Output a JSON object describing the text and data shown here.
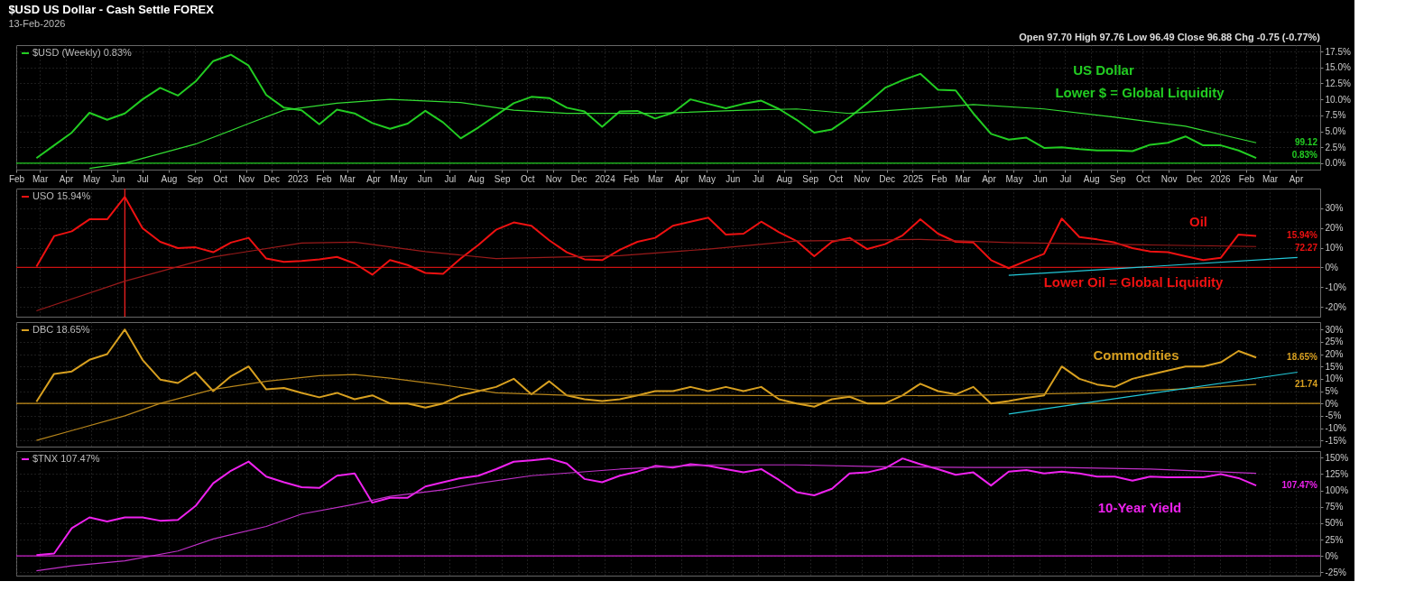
{
  "chart_data": [
    {
      "type": "line",
      "title": "$USD US Dollar - Cash Settle FOREX",
      "subtitle": "13-Feb-2026",
      "annotations": [
        "Open 97.70 High 97.76 Low 96.49 Close 96.88 Chg -0.75 (-0.77%)",
        "US Dollar",
        "Lower $ = Global Liquidity",
        "99.12",
        "0.83%"
      ],
      "x": [
        "2022-02-25",
        "2022-03-18",
        "2022-04-08",
        "2022-04-29",
        "2022-05-20",
        "2022-06-10",
        "2022-07-01",
        "2022-07-22",
        "2022-08-12",
        "2022-09-02",
        "2022-09-23",
        "2022-10-14",
        "2022-11-04",
        "2022-11-25",
        "2022-12-16",
        "2023-01-06",
        "2023-01-27",
        "2023-02-17",
        "2023-03-10",
        "2023-03-31",
        "2023-04-21",
        "2023-05-12",
        "2023-06-02",
        "2023-06-23",
        "2023-07-14",
        "2023-08-04",
        "2023-08-25",
        "2023-09-15",
        "2023-10-06",
        "2023-10-27",
        "2023-11-17",
        "2023-12-08",
        "2023-12-29",
        "2024-01-19",
        "2024-02-09",
        "2024-03-01",
        "2024-03-22",
        "2024-04-12",
        "2024-05-03",
        "2024-05-24",
        "2024-06-14",
        "2024-07-05",
        "2024-07-26",
        "2024-08-16",
        "2024-09-06",
        "2024-09-27",
        "2024-10-18",
        "2024-11-08",
        "2024-11-29",
        "2024-12-20",
        "2025-01-10",
        "2025-01-31",
        "2025-02-21",
        "2025-03-14",
        "2025-04-04",
        "2025-04-25",
        "2025-05-16",
        "2025-06-06",
        "2025-06-27",
        "2025-07-18",
        "2025-08-08",
        "2025-08-29",
        "2025-09-19",
        "2025-10-10",
        "2025-10-31",
        "2025-11-21",
        "2025-12-12",
        "2026-01-02",
        "2026-01-23",
        "2026-02-13"
      ],
      "series": [
        {
          "name": "$USD (Weekly) 0.83%",
          "color": "#22cc22",
          "values": [
            0.8,
            2.8,
            4.8,
            7.9,
            6.8,
            7.8,
            10,
            11.8,
            10.6,
            12.8,
            16,
            17,
            15.3,
            10.7,
            8.7,
            8.3,
            6.1,
            8.4,
            7.8,
            6.3,
            5.4,
            6.2,
            8.2,
            6.4,
            3.9,
            5.6,
            7.5,
            9.4,
            10.4,
            10.2,
            8.7,
            8.1,
            5.7,
            8.1,
            8.2,
            7,
            7.9,
            10,
            9.3,
            8.6,
            9.3,
            9.8,
            8.5,
            6.8,
            4.8,
            5.3,
            7.2,
            9.4,
            11.8,
            13,
            14,
            11.5,
            11.4,
            7.8,
            4.6,
            3.7,
            4,
            2.4,
            2.5,
            2.2,
            2,
            2,
            1.9,
            2.9,
            3.2,
            4.2,
            2.8,
            2.8,
            2,
            0.83
          ]
        },
        {
          "color": "#33dd33",
          "x": [
            "2022-04-29",
            "2022-06-10",
            "2022-09-02",
            "2022-11-04",
            "2022-12-16",
            "2023-02-17",
            "2023-04-21",
            "2023-07-14",
            "2023-09-15",
            "2023-11-17",
            "2024-03-01",
            "2024-06-14",
            "2024-08-16",
            "2024-10-18",
            "2025-01-10",
            "2025-03-14",
            "2025-06-06",
            "2025-08-29",
            "2025-11-21",
            "2026-02-13"
          ],
          "values": [
            -0.8,
            0,
            3,
            6.2,
            8.3,
            9.4,
            10,
            9.5,
            8.3,
            7.8,
            7.8,
            8.3,
            8.5,
            7.8,
            8.6,
            9.2,
            8.5,
            7.2,
            5.8,
            3.2
          ]
        }
      ],
      "xlim": [
        "2022-02-01",
        "2026-04-30"
      ],
      "xticks": [
        {
          "value": "2022-02",
          "label": "Feb"
        },
        {
          "value": "2022-03",
          "label": "Mar"
        },
        {
          "value": "2022-04",
          "label": "Apr"
        },
        {
          "value": "2022-05",
          "label": "May"
        },
        {
          "value": "2022-06",
          "label": "Jun"
        },
        {
          "value": "2022-07",
          "label": "Jul"
        },
        {
          "value": "2022-08",
          "label": "Aug"
        },
        {
          "value": "2022-09",
          "label": "Sep"
        },
        {
          "value": "2022-10",
          "label": "Oct"
        },
        {
          "value": "2022-11",
          "label": "Nov"
        },
        {
          "value": "2022-12",
          "label": "Dec"
        },
        {
          "value": "2023-01",
          "label": "2023"
        },
        {
          "value": "2023-02",
          "label": "Feb"
        },
        {
          "value": "2023-03",
          "label": "Mar"
        },
        {
          "value": "2023-04",
          "label": "Apr"
        },
        {
          "value": "2023-05",
          "label": "May"
        },
        {
          "value": "2023-06",
          "label": "Jun"
        },
        {
          "value": "2023-07",
          "label": "Jul"
        },
        {
          "value": "2023-08",
          "label": "Aug"
        },
        {
          "value": "2023-09",
          "label": "Sep"
        },
        {
          "value": "2023-10",
          "label": "Oct"
        },
        {
          "value": "2023-11",
          "label": "Nov"
        },
        {
          "value": "2023-12",
          "label": "Dec"
        },
        {
          "value": "2024-01",
          "label": "2024"
        },
        {
          "value": "2024-02",
          "label": "Feb"
        },
        {
          "value": "2024-03",
          "label": "Mar"
        },
        {
          "value": "2024-04",
          "label": "Apr"
        },
        {
          "value": "2024-05",
          "label": "May"
        },
        {
          "value": "2024-06",
          "label": "Jun"
        },
        {
          "value": "2024-07",
          "label": "Jul"
        },
        {
          "value": "2024-08",
          "label": "Aug"
        },
        {
          "value": "2024-09",
          "label": "Sep"
        },
        {
          "value": "2024-10",
          "label": "Oct"
        },
        {
          "value": "2024-11",
          "label": "Nov"
        },
        {
          "value": "2024-12",
          "label": "Dec"
        },
        {
          "value": "2025-01",
          "label": "2025"
        },
        {
          "value": "2025-02",
          "label": "Feb"
        },
        {
          "value": "2025-03",
          "label": "Mar"
        },
        {
          "value": "2025-04",
          "label": "Apr"
        },
        {
          "value": "2025-05",
          "label": "May"
        },
        {
          "value": "2025-06",
          "label": "Jun"
        },
        {
          "value": "2025-07",
          "label": "Jul"
        },
        {
          "value": "2025-08",
          "label": "Aug"
        },
        {
          "value": "2025-09",
          "label": "Sep"
        },
        {
          "value": "2025-10",
          "label": "Oct"
        },
        {
          "value": "2025-11",
          "label": "Nov"
        },
        {
          "value": "2025-12",
          "label": "Dec"
        },
        {
          "value": "2026-01",
          "label": "2026"
        },
        {
          "value": "2026-02",
          "label": "Feb"
        },
        {
          "value": "2026-03",
          "label": "Mar"
        },
        {
          "value": "2026-04",
          "label": "Apr"
        }
      ],
      "ylim": [
        -1,
        18.5
      ],
      "yticks": [
        {
          "value": 0,
          "label": "0.0%"
        },
        {
          "value": 2.5,
          "label": "2.5%"
        },
        {
          "value": 5,
          "label": "5.0%"
        },
        {
          "value": 7.5,
          "label": "7.5%"
        },
        {
          "value": 10,
          "label": "10.0%"
        },
        {
          "value": 12.5,
          "label": "12.5%"
        },
        {
          "value": 15,
          "label": "15.0%"
        },
        {
          "value": 17.5,
          "label": "17.5%"
        }
      ],
      "ref_lines": [
        {
          "axis": "y",
          "value": 0,
          "color": "#22cc22"
        }
      ],
      "grid": true,
      "legend": "top left"
    },
    {
      "type": "line",
      "annotations": [
        "Oil",
        "Lower Oil = Global Liquidity",
        "15.94%",
        "72.27"
      ],
      "x": [
        "2022-02-25",
        "2022-03-18",
        "2022-04-08",
        "2022-04-29",
        "2022-05-20",
        "2022-06-10",
        "2022-07-01",
        "2022-07-22",
        "2022-08-12",
        "2022-09-02",
        "2022-09-23",
        "2022-10-14",
        "2022-11-04",
        "2022-11-25",
        "2022-12-16",
        "2023-01-06",
        "2023-01-27",
        "2023-02-17",
        "2023-03-10",
        "2023-03-31",
        "2023-04-21",
        "2023-05-12",
        "2023-06-02",
        "2023-06-23",
        "2023-07-14",
        "2023-08-04",
        "2023-08-25",
        "2023-09-15",
        "2023-10-06",
        "2023-10-27",
        "2023-11-17",
        "2023-12-08",
        "2023-12-29",
        "2024-01-19",
        "2024-02-09",
        "2024-03-01",
        "2024-03-22",
        "2024-04-12",
        "2024-05-03",
        "2024-05-24",
        "2024-06-14",
        "2024-07-05",
        "2024-07-26",
        "2024-08-16",
        "2024-09-06",
        "2024-09-27",
        "2024-10-18",
        "2024-11-08",
        "2024-11-29",
        "2024-12-20",
        "2025-01-10",
        "2025-01-31",
        "2025-02-21",
        "2025-03-14",
        "2025-04-04",
        "2025-04-25",
        "2025-05-16",
        "2025-06-06",
        "2025-06-27",
        "2025-07-18",
        "2025-08-08",
        "2025-08-29",
        "2025-09-19",
        "2025-10-10",
        "2025-10-31",
        "2025-11-21",
        "2025-12-12",
        "2026-01-02",
        "2026-01-23",
        "2026-02-13"
      ],
      "series": [
        {
          "name": "USO 15.94%",
          "color": "#ee1111",
          "values": [
            0.4,
            15.9,
            18.3,
            24.4,
            24.4,
            35.8,
            19.9,
            13,
            9.8,
            10.2,
            7.7,
            12.6,
            15,
            4.5,
            2.8,
            3.3,
            4.1,
            5.3,
            2,
            -3.7,
            3.7,
            1.2,
            -2.8,
            -3.3,
            4.5,
            11.4,
            19.1,
            22.8,
            21.1,
            13.8,
            7.7,
            4.1,
            3.7,
            8.9,
            13,
            15,
            21.1,
            23.2,
            25.2,
            16.7,
            17.1,
            23.2,
            17.9,
            13.4,
            5.7,
            13,
            15,
            9.3,
            11.8,
            16.3,
            24.4,
            17.1,
            13,
            12.6,
            3.7,
            -0.4,
            3.3,
            6.9,
            24.8,
            15.4,
            14.2,
            12.6,
            9.8,
            8.1,
            7.7,
            5.7,
            3.7,
            4.9,
            16.7,
            15.94
          ]
        },
        {
          "color": "#9a1a1a",
          "x": [
            "2022-02-25",
            "2022-06-10",
            "2022-09-23",
            "2023-01-06",
            "2023-03-10",
            "2023-06-02",
            "2023-08-25",
            "2024-01-19",
            "2024-05-03",
            "2024-08-16",
            "2025-01-10",
            "2025-04-25",
            "2025-10-10",
            "2026-02-13"
          ],
          "values": [
            -22,
            -7,
            5.3,
            12.4,
            12.8,
            8,
            4.5,
            6,
            9.3,
            13.4,
            14.2,
            12.6,
            11.4,
            10.6
          ]
        },
        {
          "type": "line",
          "color": "#22c8d8",
          "x": [
            "2025-04-25",
            "2026-04-03"
          ],
          "values": [
            -4,
            5
          ]
        }
      ],
      "xlim": [
        "2022-02-01",
        "2026-04-30"
      ],
      "xticks": [
        {
          "value": "2022-02",
          "label": null
        },
        {
          "value": "2022-03",
          "label": null
        },
        {
          "value": "2022-04",
          "label": null
        },
        {
          "value": "2022-05",
          "label": null
        },
        {
          "value": "2022-06",
          "label": null
        },
        {
          "value": "2022-07",
          "label": null
        },
        {
          "value": "2022-08",
          "label": null
        },
        {
          "value": "2022-09",
          "label": null
        },
        {
          "value": "2022-10",
          "label": null
        },
        {
          "value": "2022-11",
          "label": null
        },
        {
          "value": "2022-12",
          "label": null
        },
        {
          "value": "2023-01",
          "label": null
        },
        {
          "value": "2023-02",
          "label": null
        },
        {
          "value": "2023-03",
          "label": null
        },
        {
          "value": "2023-04",
          "label": null
        },
        {
          "value": "2023-05",
          "label": null
        },
        {
          "value": "2023-06",
          "label": null
        },
        {
          "value": "2023-07",
          "label": null
        },
        {
          "value": "2023-08",
          "label": null
        },
        {
          "value": "2023-09",
          "label": null
        },
        {
          "value": "2023-10",
          "label": null
        },
        {
          "value": "2023-11",
          "label": null
        },
        {
          "value": "2023-12",
          "label": null
        },
        {
          "value": "2024-01",
          "label": null
        },
        {
          "value": "2024-02",
          "label": null
        },
        {
          "value": "2024-03",
          "label": null
        },
        {
          "value": "2024-04",
          "label": null
        },
        {
          "value": "2024-05",
          "label": null
        },
        {
          "value": "2024-06",
          "label": null
        },
        {
          "value": "2024-07",
          "label": null
        },
        {
          "value": "2024-08",
          "label": null
        },
        {
          "value": "2024-09",
          "label": null
        },
        {
          "value": "2024-10",
          "label": null
        },
        {
          "value": "2024-11",
          "label": null
        },
        {
          "value": "2024-12",
          "label": null
        },
        {
          "value": "2025-01",
          "label": null
        },
        {
          "value": "2025-02",
          "label": null
        },
        {
          "value": "2025-03",
          "label": null
        },
        {
          "value": "2025-04",
          "label": null
        },
        {
          "value": "2025-05",
          "label": null
        },
        {
          "value": "2025-06",
          "label": null
        },
        {
          "value": "2025-07",
          "label": null
        },
        {
          "value": "2025-08",
          "label": null
        },
        {
          "value": "2025-09",
          "label": null
        },
        {
          "value": "2025-10",
          "label": null
        },
        {
          "value": "2025-11",
          "label": null
        },
        {
          "value": "2025-12",
          "label": null
        },
        {
          "value": "2026-01",
          "label": null
        },
        {
          "value": "2026-02",
          "label": null
        },
        {
          "value": "2026-03",
          "label": null
        },
        {
          "value": "2026-04",
          "label": null
        }
      ],
      "ylim": [
        -25,
        40
      ],
      "yticks": [
        {
          "value": -20,
          "label": "-20%"
        },
        {
          "value": -10,
          "label": "-10%"
        },
        {
          "value": 0,
          "label": "0%"
        },
        {
          "value": 10,
          "label": "10%"
        },
        {
          "value": 20,
          "label": "20%"
        },
        {
          "value": 30,
          "label": "30%"
        }
      ],
      "ref_lines": [
        {
          "axis": "y",
          "value": 0,
          "color": "#cc1111"
        },
        {
          "axis": "x",
          "value": "2022-06-10",
          "color": "#ff2222"
        }
      ],
      "grid": true,
      "legend": "top left",
      "tick_labels": "y"
    },
    {
      "type": "line",
      "annotations": [
        "Commodities",
        "18.65%",
        "21.74"
      ],
      "x": [
        "2022-02-25",
        "2022-03-18",
        "2022-04-08",
        "2022-04-29",
        "2022-05-20",
        "2022-06-10",
        "2022-07-01",
        "2022-07-22",
        "2022-08-12",
        "2022-09-02",
        "2022-09-23",
        "2022-10-14",
        "2022-11-04",
        "2022-11-25",
        "2022-12-16",
        "2023-01-06",
        "2023-01-27",
        "2023-02-17",
        "2023-03-10",
        "2023-03-31",
        "2023-04-21",
        "2023-05-12",
        "2023-06-02",
        "2023-06-23",
        "2023-07-14",
        "2023-08-04",
        "2023-08-25",
        "2023-09-15",
        "2023-10-06",
        "2023-10-27",
        "2023-11-17",
        "2023-12-08",
        "2023-12-29",
        "2024-01-19",
        "2024-02-09",
        "2024-03-01",
        "2024-03-22",
        "2024-04-12",
        "2024-05-03",
        "2024-05-24",
        "2024-06-14",
        "2024-07-05",
        "2024-07-26",
        "2024-08-16",
        "2024-09-06",
        "2024-09-27",
        "2024-10-18",
        "2024-11-08",
        "2024-11-29",
        "2024-12-20",
        "2025-01-10",
        "2025-01-31",
        "2025-02-21",
        "2025-03-14",
        "2025-04-04",
        "2025-04-25",
        "2025-05-16",
        "2025-06-06",
        "2025-06-27",
        "2025-07-18",
        "2025-08-08",
        "2025-08-29",
        "2025-09-19",
        "2025-10-10",
        "2025-10-31",
        "2025-11-21",
        "2025-12-12",
        "2026-01-02",
        "2026-01-23",
        "2026-02-13"
      ],
      "series": [
        {
          "name": "DBC 18.65%",
          "color": "#d8a020",
          "values": [
            0.7,
            12,
            13,
            17.7,
            20,
            30,
            17.7,
            9.7,
            8.3,
            12.7,
            5,
            11,
            15,
            5.7,
            6.3,
            4.3,
            2.5,
            4.3,
            1.7,
            3.3,
            0,
            0,
            -1.7,
            0,
            3.3,
            5,
            6.7,
            10,
            3.7,
            9,
            3.3,
            1.7,
            1,
            1.7,
            3.3,
            5,
            5,
            6.7,
            5,
            6.7,
            5,
            6.7,
            1.7,
            0,
            -1.3,
            1.7,
            2.7,
            0,
            0,
            3.3,
            8,
            5,
            3.7,
            6.7,
            0,
            1,
            2.3,
            3.3,
            15,
            10,
            7.7,
            6.7,
            10,
            11.7,
            13.3,
            15,
            15,
            16.7,
            21.3,
            18.65
          ]
        },
        {
          "color": "#b8861b",
          "x": [
            "2022-02-25",
            "2022-04-08",
            "2022-06-10",
            "2022-07-22",
            "2022-09-23",
            "2022-11-25",
            "2023-01-27",
            "2023-03-10",
            "2023-04-21",
            "2023-06-23",
            "2023-08-25",
            "2023-11-17",
            "2024-05-03",
            "2024-10-18",
            "2025-03-14",
            "2025-08-08",
            "2025-11-21",
            "2026-02-13"
          ],
          "values": [
            -15,
            -11,
            -5,
            0,
            5.7,
            9,
            11.3,
            11.7,
            10.3,
            7.5,
            4.3,
            3.3,
            3.3,
            3,
            3.3,
            4.3,
            6,
            7.7
          ]
        },
        {
          "type": "line",
          "color": "#22c8d8",
          "x": [
            "2025-04-25",
            "2026-04-03"
          ],
          "values": [
            -4.3,
            12.7
          ]
        }
      ],
      "xlim": [
        "2022-02-01",
        "2026-04-30"
      ],
      "xticks": [
        {
          "value": "2022-02",
          "label": null
        },
        {
          "value": "2022-03",
          "label": null
        },
        {
          "value": "2022-04",
          "label": null
        },
        {
          "value": "2022-05",
          "label": null
        },
        {
          "value": "2022-06",
          "label": null
        },
        {
          "value": "2022-07",
          "label": null
        },
        {
          "value": "2022-08",
          "label": null
        },
        {
          "value": "2022-09",
          "label": null
        },
        {
          "value": "2022-10",
          "label": null
        },
        {
          "value": "2022-11",
          "label": null
        },
        {
          "value": "2022-12",
          "label": null
        },
        {
          "value": "2023-01",
          "label": null
        },
        {
          "value": "2023-02",
          "label": null
        },
        {
          "value": "2023-03",
          "label": null
        },
        {
          "value": "2023-04",
          "label": null
        },
        {
          "value": "2023-05",
          "label": null
        },
        {
          "value": "2023-06",
          "label": null
        },
        {
          "value": "2023-07",
          "label": null
        },
        {
          "value": "2023-08",
          "label": null
        },
        {
          "value": "2023-09",
          "label": null
        },
        {
          "value": "2023-10",
          "label": null
        },
        {
          "value": "2023-11",
          "label": null
        },
        {
          "value": "2023-12",
          "label": null
        },
        {
          "value": "2024-01",
          "label": null
        },
        {
          "value": "2024-02",
          "label": null
        },
        {
          "value": "2024-03",
          "label": null
        },
        {
          "value": "2024-04",
          "label": null
        },
        {
          "value": "2024-05",
          "label": null
        },
        {
          "value": "2024-06",
          "label": null
        },
        {
          "value": "2024-07",
          "label": null
        },
        {
          "value": "2024-08",
          "label": null
        },
        {
          "value": "2024-09",
          "label": null
        },
        {
          "value": "2024-10",
          "label": null
        },
        {
          "value": "2024-11",
          "label": null
        },
        {
          "value": "2024-12",
          "label": null
        },
        {
          "value": "2025-01",
          "label": null
        },
        {
          "value": "2025-02",
          "label": null
        },
        {
          "value": "2025-03",
          "label": null
        },
        {
          "value": "2025-04",
          "label": null
        },
        {
          "value": "2025-05",
          "label": null
        },
        {
          "value": "2025-06",
          "label": null
        },
        {
          "value": "2025-07",
          "label": null
        },
        {
          "value": "2025-08",
          "label": null
        },
        {
          "value": "2025-09",
          "label": null
        },
        {
          "value": "2025-10",
          "label": null
        },
        {
          "value": "2025-11",
          "label": null
        },
        {
          "value": "2025-12",
          "label": null
        },
        {
          "value": "2026-01",
          "label": null
        },
        {
          "value": "2026-02",
          "label": null
        },
        {
          "value": "2026-03",
          "label": null
        },
        {
          "value": "2026-04",
          "label": null
        }
      ],
      "ylim": [
        -17.5,
        33
      ],
      "yticks": [
        {
          "value": -15,
          "label": "-15%"
        },
        {
          "value": -10,
          "label": "-10%"
        },
        {
          "value": -5,
          "label": "-5%"
        },
        {
          "value": 0,
          "label": "0%"
        },
        {
          "value": 5,
          "label": "5%"
        },
        {
          "value": 10,
          "label": "10%"
        },
        {
          "value": 15,
          "label": "15%"
        },
        {
          "value": 20,
          "label": "20%"
        },
        {
          "value": 25,
          "label": "25%"
        },
        {
          "value": 30,
          "label": "30%"
        }
      ],
      "ref_lines": [
        {
          "axis": "y",
          "value": 0,
          "color": "#c8901a"
        }
      ],
      "grid": true,
      "legend": "top left",
      "tick_labels": "y"
    },
    {
      "type": "line",
      "annotations": [
        "10-Year Yield",
        "107.47%"
      ],
      "x": [
        "2022-02-25",
        "2022-03-18",
        "2022-04-08",
        "2022-04-29",
        "2022-05-20",
        "2022-06-10",
        "2022-07-01",
        "2022-07-22",
        "2022-08-12",
        "2022-09-02",
        "2022-09-23",
        "2022-10-14",
        "2022-11-04",
        "2022-11-25",
        "2022-12-16",
        "2023-01-06",
        "2023-01-27",
        "2023-02-17",
        "2023-03-10",
        "2023-03-31",
        "2023-04-21",
        "2023-05-12",
        "2023-06-02",
        "2023-06-23",
        "2023-07-14",
        "2023-08-04",
        "2023-08-25",
        "2023-09-15",
        "2023-10-06",
        "2023-10-27",
        "2023-11-17",
        "2023-12-08",
        "2023-12-29",
        "2024-01-19",
        "2024-02-09",
        "2024-03-01",
        "2024-03-22",
        "2024-04-12",
        "2024-05-03",
        "2024-05-24",
        "2024-06-14",
        "2024-07-05",
        "2024-07-26",
        "2024-08-16",
        "2024-09-06",
        "2024-09-27",
        "2024-10-18",
        "2024-11-08",
        "2024-11-29",
        "2024-12-20",
        "2025-01-10",
        "2025-01-31",
        "2025-02-21",
        "2025-03-14",
        "2025-04-04",
        "2025-04-25",
        "2025-05-16",
        "2025-06-06",
        "2025-06-27",
        "2025-07-18",
        "2025-08-08",
        "2025-08-29",
        "2025-09-19",
        "2025-10-10",
        "2025-10-31",
        "2025-11-21",
        "2025-12-12",
        "2026-01-02",
        "2026-01-23",
        "2026-02-13"
      ],
      "series": [
        {
          "name": "$TNX 107.47%",
          "color": "#ee22ee",
          "values": [
            1.3,
            3.8,
            42.5,
            58.8,
            52.5,
            58.8,
            58.8,
            53.8,
            55,
            76.3,
            111,
            130,
            144,
            121,
            112.5,
            105,
            103.8,
            122.5,
            126,
            81.3,
            88.8,
            88.8,
            106,
            112.5,
            118.8,
            122.5,
            132.5,
            143.8,
            146,
            148.8,
            141,
            117.5,
            112.5,
            122.5,
            128.8,
            137.5,
            135,
            140,
            137.5,
            132.5,
            127.5,
            132.5,
            116,
            97.5,
            92.5,
            102.5,
            126,
            127.5,
            133.8,
            148.8,
            140,
            132.5,
            123.8,
            127.5,
            107.5,
            128.8,
            131,
            126,
            128.8,
            126,
            121,
            121,
            115,
            121,
            120,
            120,
            120,
            125,
            118.8,
            107.47
          ]
        },
        {
          "color": "#c030c8",
          "x": [
            "2022-02-25",
            "2022-04-08",
            "2022-06-10",
            "2022-08-12",
            "2022-09-23",
            "2022-11-25",
            "2023-01-06",
            "2023-03-10",
            "2023-04-21",
            "2023-06-23",
            "2023-08-04",
            "2023-10-06",
            "2024-01-19",
            "2024-05-03",
            "2024-08-16",
            "2024-11-29",
            "2025-03-14",
            "2025-06-27",
            "2025-10-10",
            "2026-02-13"
          ],
          "values": [
            -22.5,
            -15,
            -7.5,
            7.5,
            26,
            45,
            64,
            79,
            91,
            101,
            111,
            122.5,
            132.5,
            139,
            139,
            136,
            135,
            135,
            132.5,
            126
          ]
        }
      ],
      "xlim": [
        "2022-02-01",
        "2026-04-30"
      ],
      "xticks": [
        {
          "value": "2022-02",
          "label": null
        },
        {
          "value": "2022-03",
          "label": null
        },
        {
          "value": "2022-04",
          "label": null
        },
        {
          "value": "2022-05",
          "label": null
        },
        {
          "value": "2022-06",
          "label": null
        },
        {
          "value": "2022-07",
          "label": null
        },
        {
          "value": "2022-08",
          "label": null
        },
        {
          "value": "2022-09",
          "label": null
        },
        {
          "value": "2022-10",
          "label": null
        },
        {
          "value": "2022-11",
          "label": null
        },
        {
          "value": "2022-12",
          "label": null
        },
        {
          "value": "2023-01",
          "label": null
        },
        {
          "value": "2023-02",
          "label": null
        },
        {
          "value": "2023-03",
          "label": null
        },
        {
          "value": "2023-04",
          "label": null
        },
        {
          "value": "2023-05",
          "label": null
        },
        {
          "value": "2023-06",
          "label": null
        },
        {
          "value": "2023-07",
          "label": null
        },
        {
          "value": "2023-08",
          "label": null
        },
        {
          "value": "2023-09",
          "label": null
        },
        {
          "value": "2023-10",
          "label": null
        },
        {
          "value": "2023-11",
          "label": null
        },
        {
          "value": "2023-12",
          "label": null
        },
        {
          "value": "2024-01",
          "label": null
        },
        {
          "value": "2024-02",
          "label": null
        },
        {
          "value": "2024-03",
          "label": null
        },
        {
          "value": "2024-04",
          "label": null
        },
        {
          "value": "2024-05",
          "label": null
        },
        {
          "value": "2024-06",
          "label": null
        },
        {
          "value": "2024-07",
          "label": null
        },
        {
          "value": "2024-08",
          "label": null
        },
        {
          "value": "2024-09",
          "label": null
        },
        {
          "value": "2024-10",
          "label": null
        },
        {
          "value": "2024-11",
          "label": null
        },
        {
          "value": "2024-12",
          "label": null
        },
        {
          "value": "2025-01",
          "label": null
        },
        {
          "value": "2025-02",
          "label": null
        },
        {
          "value": "2025-03",
          "label": null
        },
        {
          "value": "2025-04",
          "label": null
        },
        {
          "value": "2025-05",
          "label": null
        },
        {
          "value": "2025-06",
          "label": null
        },
        {
          "value": "2025-07",
          "label": null
        },
        {
          "value": "2025-08",
          "label": null
        },
        {
          "value": "2025-09",
          "label": null
        },
        {
          "value": "2025-10",
          "label": null
        },
        {
          "value": "2025-11",
          "label": null
        },
        {
          "value": "2025-12",
          "label": null
        },
        {
          "value": "2026-01",
          "label": null
        },
        {
          "value": "2026-02",
          "label": null
        },
        {
          "value": "2026-03",
          "label": null
        },
        {
          "value": "2026-04",
          "label": null
        }
      ],
      "ylim": [
        -30,
        160
      ],
      "yticks": [
        {
          "value": -25,
          "label": "-25%"
        },
        {
          "value": 0,
          "label": "0%"
        },
        {
          "value": 25,
          "label": "25%"
        },
        {
          "value": 50,
          "label": "50%"
        },
        {
          "value": 75,
          "label": "75%"
        },
        {
          "value": 100,
          "label": "100%"
        },
        {
          "value": 125,
          "label": "125%"
        },
        {
          "value": 150,
          "label": "150%"
        }
      ],
      "ref_lines": [
        {
          "axis": "y",
          "value": 0,
          "color": "#cc22cc"
        }
      ],
      "grid": true,
      "legend": "top left",
      "tick_labels": "y"
    }
  ]
}
